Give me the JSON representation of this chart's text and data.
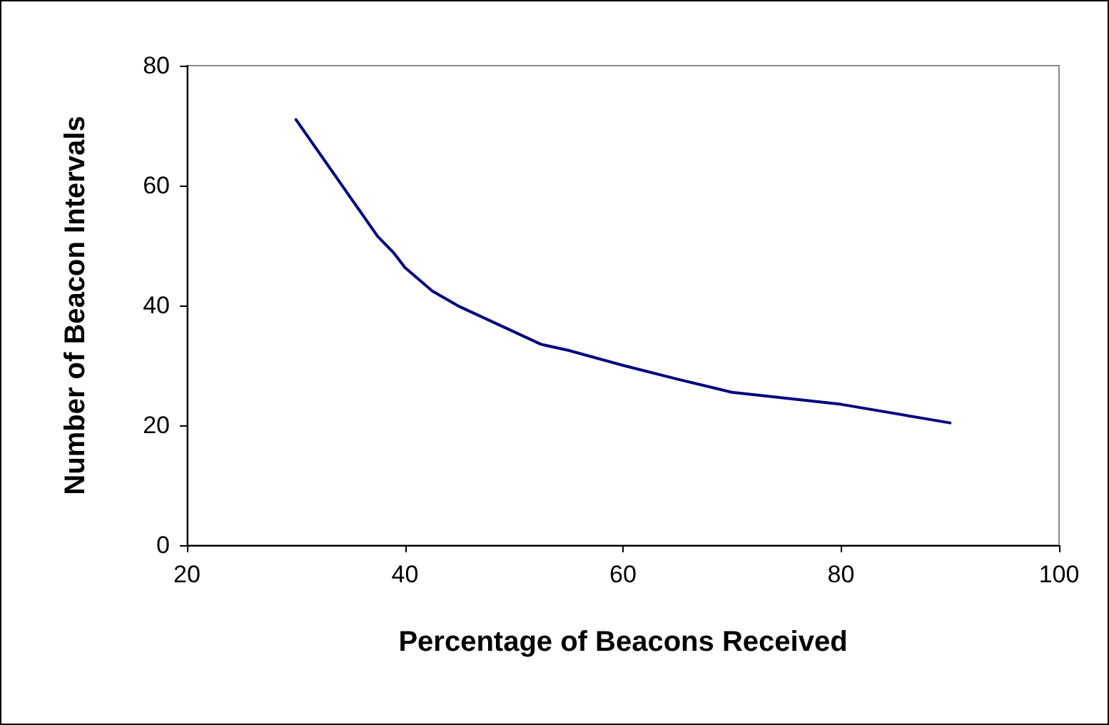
{
  "chart_data": {
    "type": "line",
    "xlabel": "Percentage of Beacons Received",
    "ylabel": "Number of Beacon Intervals",
    "x": [
      30,
      35,
      37.5,
      39,
      40,
      42.5,
      45,
      52.5,
      55,
      60,
      65,
      70,
      80,
      90
    ],
    "series": [
      {
        "color": "#000080",
        "values": [
          71,
          58,
          51.5,
          48.7,
          46.3,
          42.4,
          39.8,
          33.5,
          32.5,
          30,
          27.7,
          25.5,
          23.5,
          20.4
        ]
      }
    ],
    "xlim": [
      20,
      100
    ],
    "xticks": [
      20,
      40,
      60,
      80,
      100
    ],
    "ylim": [
      0,
      80
    ],
    "yticks": [
      0,
      20,
      40,
      60,
      80
    ],
    "grid": false,
    "marker": "none",
    "line_style": "solid"
  }
}
